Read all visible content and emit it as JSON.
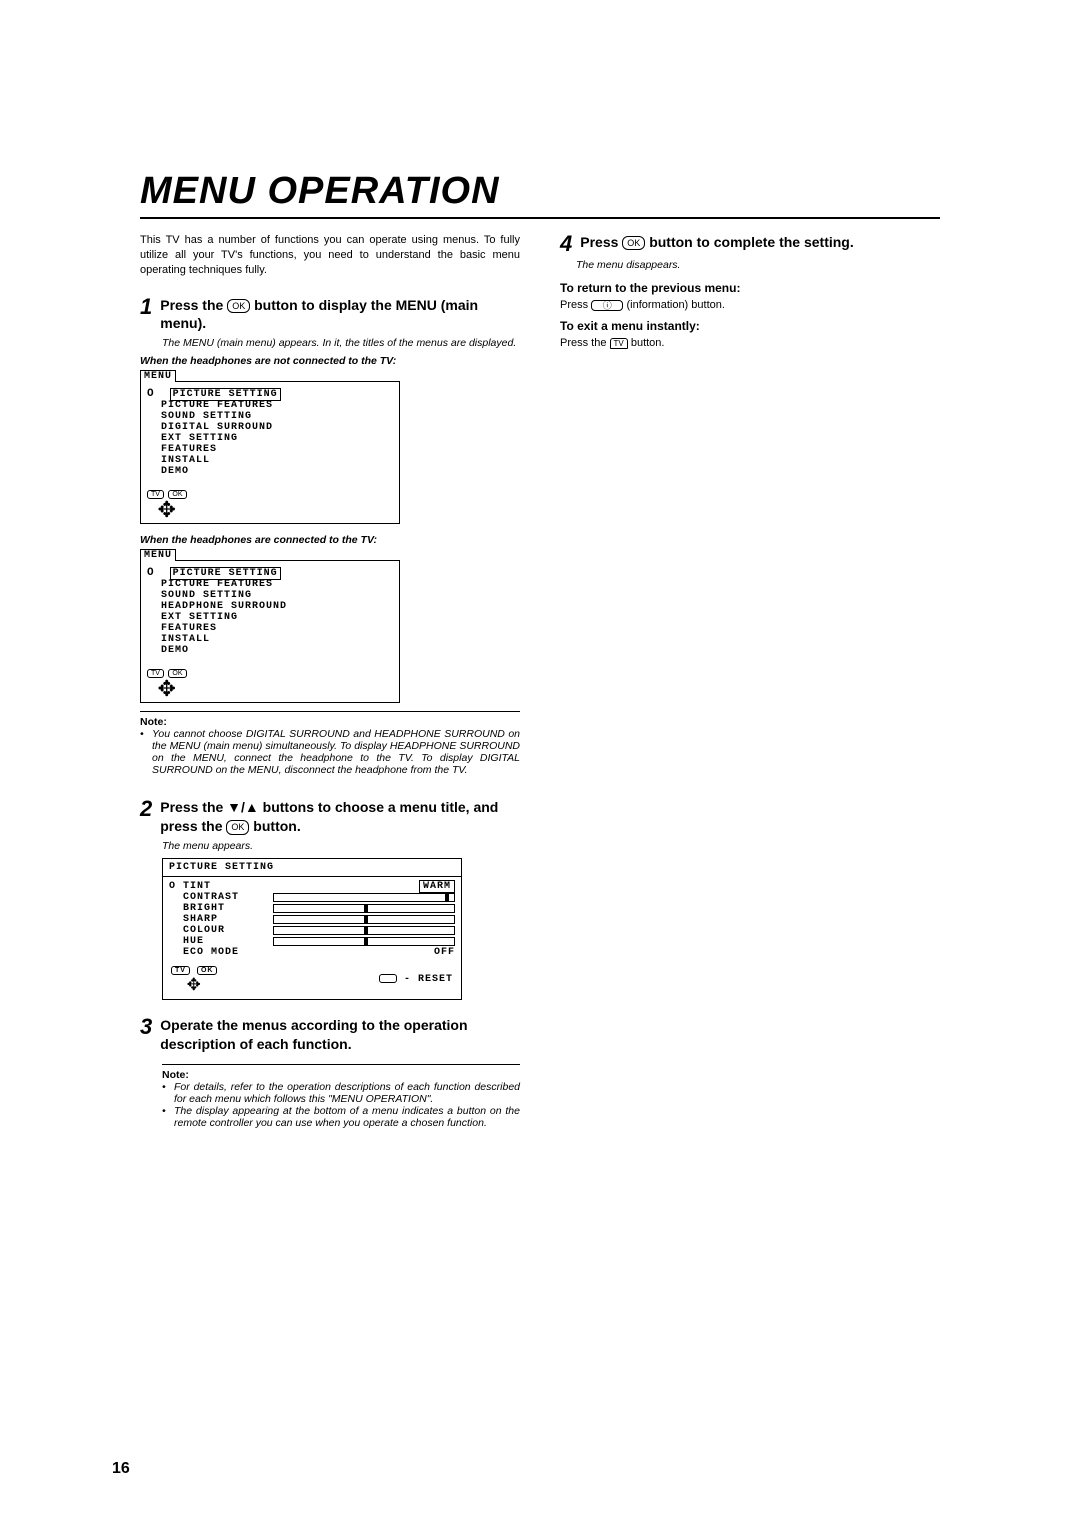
{
  "title": "MENU OPERATION",
  "intro": "This TV has a number of functions you can operate using menus. To fully utilize all your TV's functions, you need to understand the basic menu operating techniques fully.",
  "steps": {
    "s1": {
      "num": "1",
      "text_a": "Press the ",
      "text_b": " button to display the MENU  (main menu).",
      "caption": "The MENU (main menu) appears. In it, the titles of the menus are displayed."
    },
    "s2": {
      "num": "2",
      "text_a": "Press the ▼/▲ buttons to choose a menu title, and press the ",
      "text_b": " button.",
      "caption": "The menu appears."
    },
    "s3": {
      "num": "3",
      "text": "Operate the menus according to the operation description of each function."
    },
    "s4": {
      "num": "4",
      "text_a": "Press ",
      "text_b": " button to complete the setting.",
      "caption": "The menu disappears."
    }
  },
  "labels": {
    "hp_off": "When the headphones are not connected to the TV:",
    "hp_on": "When the headphones are connected to the TV:",
    "note": "Note:",
    "return": "To return to the previous menu:",
    "return_line_a": "Press ",
    "return_line_b": "  (information) button.",
    "exit": "To exit a menu instantly:",
    "exit_line_a": "Press the ",
    "exit_line_b": " button."
  },
  "menu": {
    "tab": "MENU",
    "items_off": [
      "PICTURE SETTING",
      "PICTURE FEATURES",
      "SOUND SETTING",
      "DIGITAL SURROUND",
      "EXT SETTING",
      "FEATURES",
      "INSTALL",
      "DEMO"
    ],
    "items_on": [
      "PICTURE SETTING",
      "PICTURE FEATURES",
      "SOUND SETTING",
      "HEADPHONE SURROUND",
      "EXT SETTING",
      "FEATURES",
      "INSTALL",
      "DEMO"
    ],
    "footer_tv": "TV",
    "footer_ok": "OK"
  },
  "notes": {
    "n1": "You cannot choose DIGITAL SURROUND and HEADPHONE SURROUND on the MENU (main menu) simultaneously. To display HEADPHONE SURROUND on the MENU, connect the headphone to the TV. To display DIGITAL SURROUND on the MENU, disconnect the headphone from the TV.",
    "n3a": "For details, refer to the operation descriptions of each function described for each menu which follows this \"MENU OPERATION\".",
    "n3b": "The display appearing at the bottom of a menu indicates a button on the remote controller you can use when you operate a chosen function."
  },
  "ps": {
    "header": "PICTURE SETTING",
    "tint": {
      "name": "TINT",
      "value": "WARM"
    },
    "rows": [
      {
        "name": "CONTRAST",
        "pos": 95
      },
      {
        "name": "BRIGHT",
        "pos": 50
      },
      {
        "name": "SHARP",
        "pos": 50
      },
      {
        "name": "COLOUR",
        "pos": 50
      },
      {
        "name": "HUE",
        "pos": 50
      }
    ],
    "eco": {
      "name": "ECO MODE",
      "value": "OFF"
    },
    "reset": "- RESET"
  },
  "page_number": "16"
}
